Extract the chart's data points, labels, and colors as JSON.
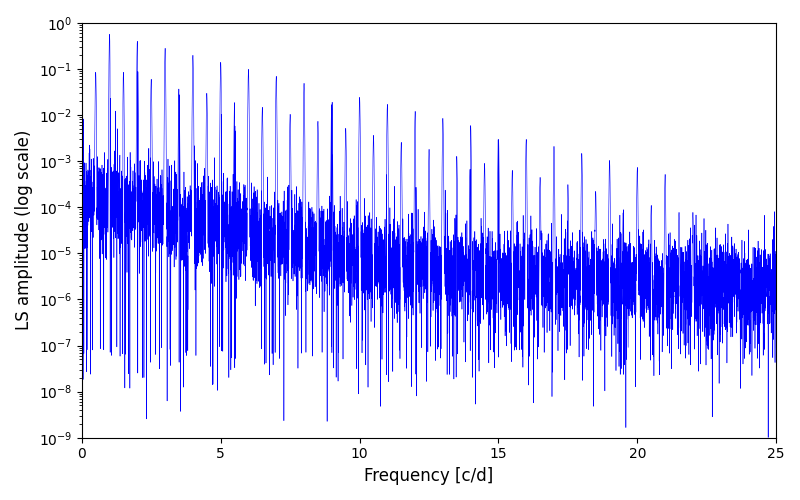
{
  "xlabel": "Frequency [c/d]",
  "ylabel": "LS amplitude (log scale)",
  "xlim": [
    0,
    25
  ],
  "ylim": [
    1e-09,
    1.0
  ],
  "line_color": "#0000ff",
  "line_width": 0.4,
  "figsize": [
    8.0,
    5.0
  ],
  "dpi": 100,
  "background_color": "#ffffff",
  "freq_max": 25.0,
  "n_points": 8000,
  "seed": 12345
}
